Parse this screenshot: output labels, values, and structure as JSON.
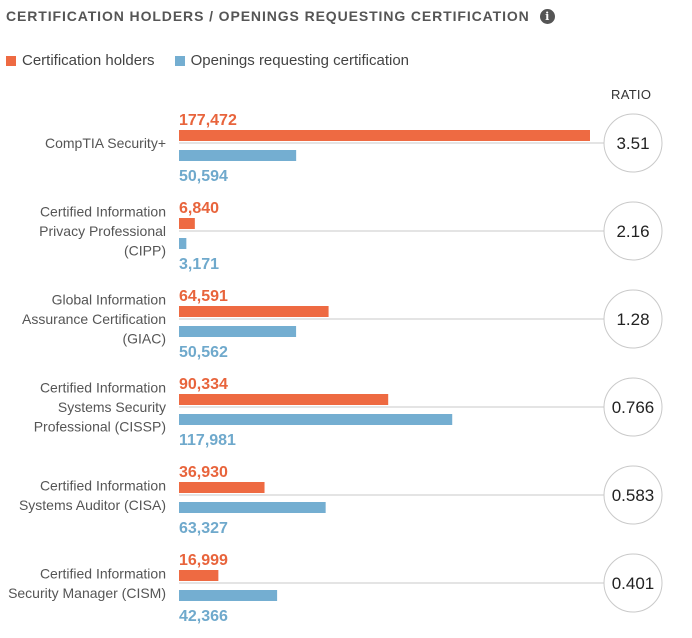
{
  "header": {
    "title": "CERTIFICATION HOLDERS / OPENINGS REQUESTING CERTIFICATION",
    "info_icon": "info-icon"
  },
  "legend": {
    "holders_label": "Certification holders",
    "openings_label": "Openings requesting certification"
  },
  "ratio_header": "RATIO",
  "colors": {
    "holders": "#ee6a42",
    "openings": "#74aed1",
    "holders_text": "#e8643c",
    "openings_text": "#6fa9cc"
  },
  "chart_data": {
    "type": "bar",
    "orientation": "horizontal",
    "title": "CERTIFICATION HOLDERS / OPENINGS REQUESTING CERTIFICATION",
    "categories": [
      [
        "CompTIA Security+"
      ],
      [
        "Certified Information",
        "Privacy Professional",
        "(CIPP)"
      ],
      [
        "Global Information",
        "Assurance Certification",
        "(GIAC)"
      ],
      [
        "Certified Information",
        "Systems Security",
        "Professional (CISSP)"
      ],
      [
        "Certified Information",
        "Systems Auditor (CISA)"
      ],
      [
        "Certified Information",
        "Security Manager (CISM)"
      ]
    ],
    "series": [
      {
        "name": "Certification holders",
        "values": [
          177472,
          6840,
          64591,
          90334,
          36930,
          16999
        ],
        "labels": [
          "177,472",
          "6,840",
          "64,591",
          "90,334",
          "36,930",
          "16,999"
        ]
      },
      {
        "name": "Openings requesting certification",
        "values": [
          50594,
          3171,
          50562,
          117981,
          63327,
          42366
        ],
        "labels": [
          "50,594",
          "3,171",
          "50,562",
          "117,981",
          "63,327",
          "42,366"
        ]
      }
    ],
    "ratios": [
      "3.51",
      "2.16",
      "1.28",
      "0.766",
      "0.583",
      "0.401"
    ],
    "legend_position": "top-left",
    "grid": false
  }
}
